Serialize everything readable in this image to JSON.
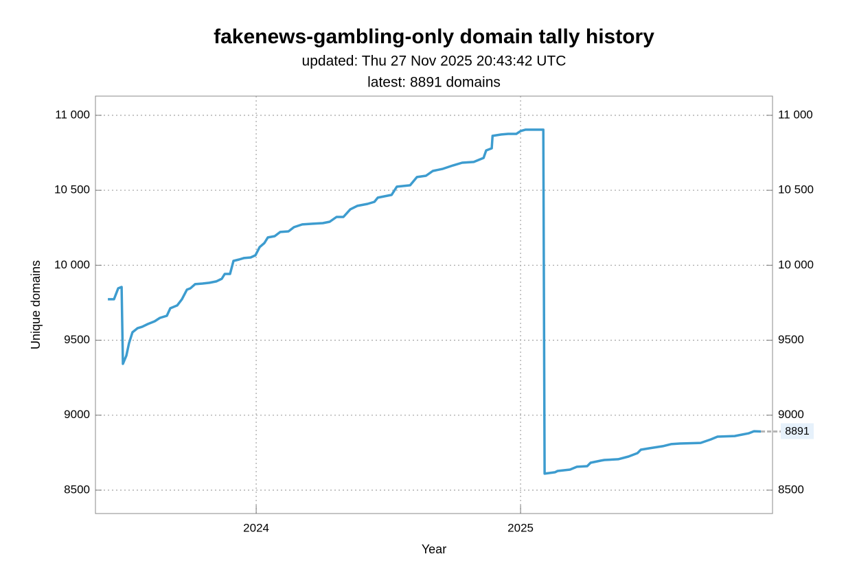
{
  "chart_data": {
    "type": "line",
    "title": "fakenews-gambling-only domain tally history",
    "subtitle": [
      "updated: Thu 27 Nov 2025 20:43:42 UTC",
      "latest: 8891 domains"
    ],
    "x_label": "Year",
    "y_label": "Unique domains",
    "xlim": [
      2023.392,
      2025.953
    ],
    "xticks": [
      2024,
      2025
    ],
    "ylim": [
      8344,
      11128
    ],
    "yticks": [
      8500,
      9000,
      9500,
      {
        "value": 10000,
        "label": "10 000"
      },
      {
        "value": 10500,
        "label": "10 500"
      },
      {
        "value": 11000,
        "label": "11 000"
      }
    ],
    "grid": true,
    "mirror_y_axis": true,
    "series": [
      {
        "name": "Unique domains",
        "color": "#3d9ccf",
        "x": [
          2023.439,
          2023.462,
          2023.478,
          2023.491,
          2023.496,
          2023.509,
          2023.519,
          2023.532,
          2023.551,
          2023.569,
          2023.59,
          2023.616,
          2023.636,
          2023.662,
          2023.675,
          2023.701,
          2023.719,
          2023.738,
          2023.751,
          2023.769,
          2023.797,
          2023.823,
          2023.849,
          2023.87,
          2023.881,
          2023.901,
          2023.914,
          2023.935,
          2023.953,
          2023.979,
          2023.997,
          2024.013,
          2024.031,
          2024.044,
          2024.07,
          2024.091,
          2024.122,
          2024.143,
          2024.174,
          2024.213,
          2024.252,
          2024.278,
          2024.304,
          2024.33,
          2024.356,
          2024.382,
          2024.421,
          2024.447,
          2024.46,
          2024.486,
          2024.512,
          2024.532,
          2024.582,
          2024.608,
          2024.642,
          2024.668,
          2024.706,
          2024.745,
          2024.779,
          2024.823,
          2024.86,
          2024.87,
          2024.891,
          2024.894,
          2024.927,
          2024.953,
          2024.984,
          2025.0,
          2025.018,
          2025.086,
          2025.091,
          2025.13,
          2025.14,
          2025.187,
          2025.213,
          2025.252,
          2025.265,
          2025.304,
          2025.317,
          2025.369,
          2025.408,
          2025.442,
          2025.455,
          2025.486,
          2025.538,
          2025.569,
          2025.603,
          2025.681,
          2025.719,
          2025.745,
          2025.81,
          2025.836,
          2025.862,
          2025.883,
          2025.909
        ],
        "values": [
          9773,
          9773,
          9846,
          9855,
          9342,
          9397,
          9480,
          9553,
          9580,
          9590,
          9608,
          9626,
          9649,
          9663,
          9713,
          9732,
          9773,
          9837,
          9846,
          9874,
          9878,
          9883,
          9892,
          9910,
          9942,
          9942,
          10029,
          10038,
          10048,
          10052,
          10066,
          10121,
          10148,
          10185,
          10194,
          10222,
          10226,
          10254,
          10272,
          10277,
          10281,
          10290,
          10322,
          10322,
          10373,
          10396,
          10409,
          10423,
          10451,
          10460,
          10469,
          10524,
          10533,
          10588,
          10597,
          10629,
          10643,
          10666,
          10684,
          10689,
          10716,
          10766,
          10780,
          10863,
          10872,
          10876,
          10876,
          10895,
          10904,
          10904,
          8610,
          8619,
          8628,
          8637,
          8656,
          8660,
          8683,
          8697,
          8701,
          8706,
          8724,
          8747,
          8770,
          8779,
          8793,
          8807,
          8811,
          8815,
          8838,
          8857,
          8861,
          8870,
          8879,
          8893,
          8891
        ]
      }
    ]
  }
}
